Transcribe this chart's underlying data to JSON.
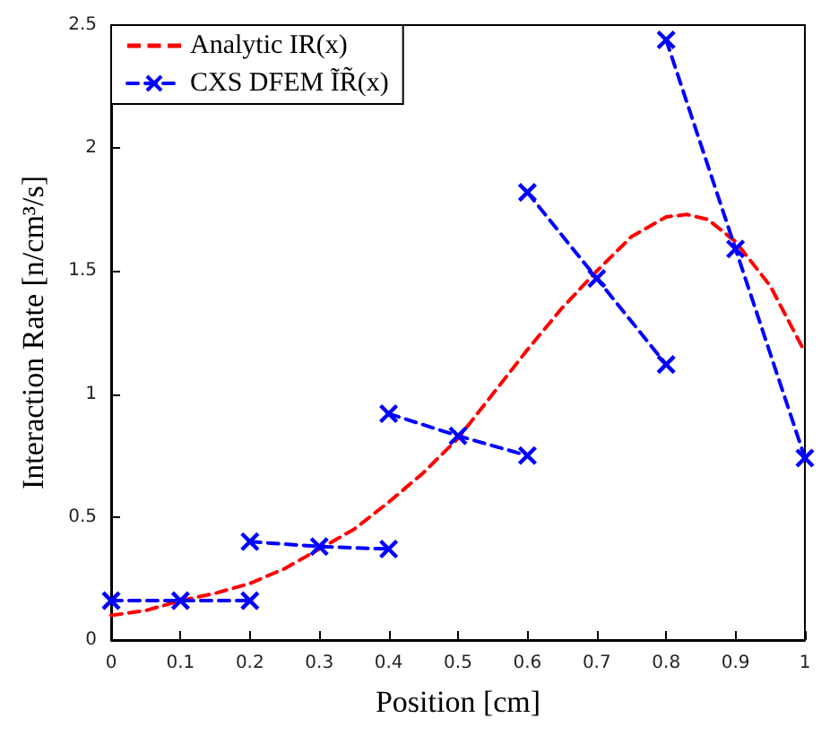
{
  "chart_data": {
    "type": "line",
    "xlabel": "Position [cm]",
    "ylabel": "Interaction Rate [n/cm³/s]",
    "xlim": [
      0,
      1
    ],
    "xticks": [
      0,
      0.1,
      0.2,
      0.3,
      0.4,
      0.5,
      0.6,
      0.7,
      0.8,
      0.9,
      1
    ],
    "ylim": [
      0,
      2.5
    ],
    "yticks": [
      0,
      0.5,
      1,
      1.5,
      2,
      2.5
    ],
    "grid": false,
    "legend": "top left",
    "series": [
      {
        "name": "Analytic IR(x)",
        "color": "#ff0000",
        "marker": "none",
        "line_style": "dashed",
        "x": [
          0,
          0.05,
          0.1,
          0.15,
          0.2,
          0.25,
          0.3,
          0.35,
          0.4,
          0.45,
          0.5,
          0.55,
          0.6,
          0.65,
          0.7,
          0.75,
          0.8,
          0.83,
          0.86,
          0.9,
          0.95,
          1
        ],
        "values": [
          0.1,
          0.12,
          0.16,
          0.19,
          0.23,
          0.29,
          0.37,
          0.45,
          0.56,
          0.68,
          0.82,
          1.0,
          1.18,
          1.35,
          1.5,
          1.64,
          1.72,
          1.73,
          1.71,
          1.62,
          1.44,
          1.17
        ]
      },
      {
        "name": "CXS DFEM ĨR̃(x)",
        "color": "#0000ff",
        "marker": "cross",
        "line_style": "dashed",
        "x": [
          0,
          0.1,
          0.2,
          null,
          0.2,
          0.3,
          0.4,
          null,
          0.4,
          0.5,
          0.6,
          null,
          0.6,
          0.7,
          0.8,
          null,
          0.8,
          0.9,
          1
        ],
        "values": [
          0.16,
          0.16,
          0.16,
          null,
          0.4,
          0.38,
          0.37,
          null,
          0.92,
          0.83,
          0.75,
          null,
          1.82,
          1.47,
          1.12,
          null,
          2.44,
          1.59,
          0.74
        ]
      }
    ]
  }
}
